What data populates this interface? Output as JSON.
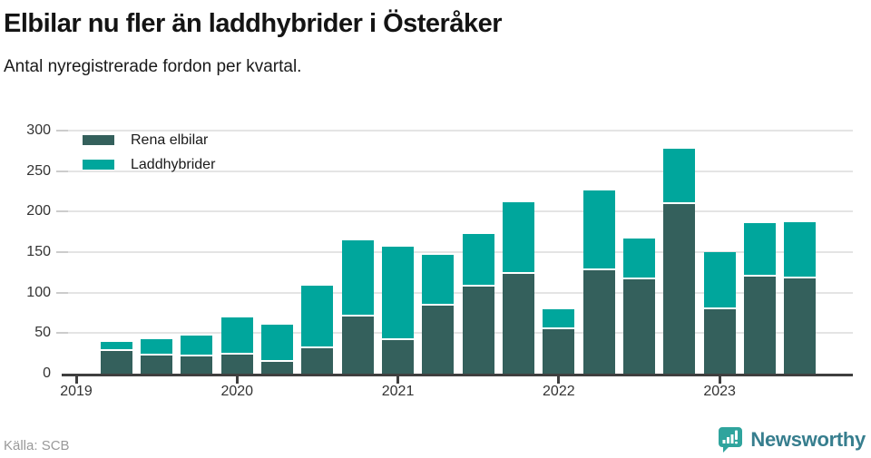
{
  "header": {
    "title": "Elbilar nu fler än laddhybrider i Österåker",
    "subtitle": "Antal nyregistrerade fordon per kvartal."
  },
  "footer": {
    "source": "Källa: SCB",
    "brand": "Newsworthy"
  },
  "colors": {
    "elbilar": "#34605c",
    "laddhybrider": "#00a69c",
    "axis": "#3f3f3f",
    "grid": "#e4e4e4",
    "brand_text": "#377e8e",
    "brand_icon": "#2fa49d"
  },
  "chart_data": {
    "type": "bar",
    "stacked": true,
    "title": "Elbilar nu fler än laddhybrider i Österåker",
    "subtitle": "Antal nyregistrerade fordon per kvartal.",
    "categories": [
      "2019 kv 1",
      "2019 kv 2",
      "2019 kv 3",
      "2019 kv 4",
      "2020 kv 1",
      "2020 kv 2",
      "2020 kv 3",
      "2020 kv 4",
      "2021 kv 1",
      "2021 kv 2",
      "2021 kv 3",
      "2021 kv 4",
      "2022 kv 1",
      "2022 kv 2",
      "2022 kv 3",
      "2022 kv 4",
      "2023 kv 1",
      "2023 kv 2",
      "2023 kv 3"
    ],
    "series": [
      {
        "name": "Rena elbilar",
        "color": "#34605c",
        "values": [
          0,
          28,
          22,
          21,
          23,
          15,
          31,
          70,
          41,
          84,
          108,
          123,
          55,
          128,
          116,
          209,
          79,
          120,
          117
        ]
      },
      {
        "name": "Laddhybrider",
        "color": "#00a69c",
        "values": [
          0,
          11,
          21,
          26,
          46,
          45,
          78,
          95,
          116,
          63,
          64,
          89,
          24,
          98,
          51,
          69,
          71,
          66,
          70
        ]
      }
    ],
    "ylim": [
      0,
      300
    ],
    "ytick_step": 50,
    "yticks": [
      0,
      50,
      100,
      150,
      200,
      250,
      300
    ],
    "year_ticks": [
      {
        "label": "2019",
        "index": 0
      },
      {
        "label": "2020",
        "index": 4
      },
      {
        "label": "2021",
        "index": 8
      },
      {
        "label": "2022",
        "index": 12
      },
      {
        "label": "2023",
        "index": 16
      }
    ],
    "grid": true,
    "legend_position": "top-left"
  }
}
